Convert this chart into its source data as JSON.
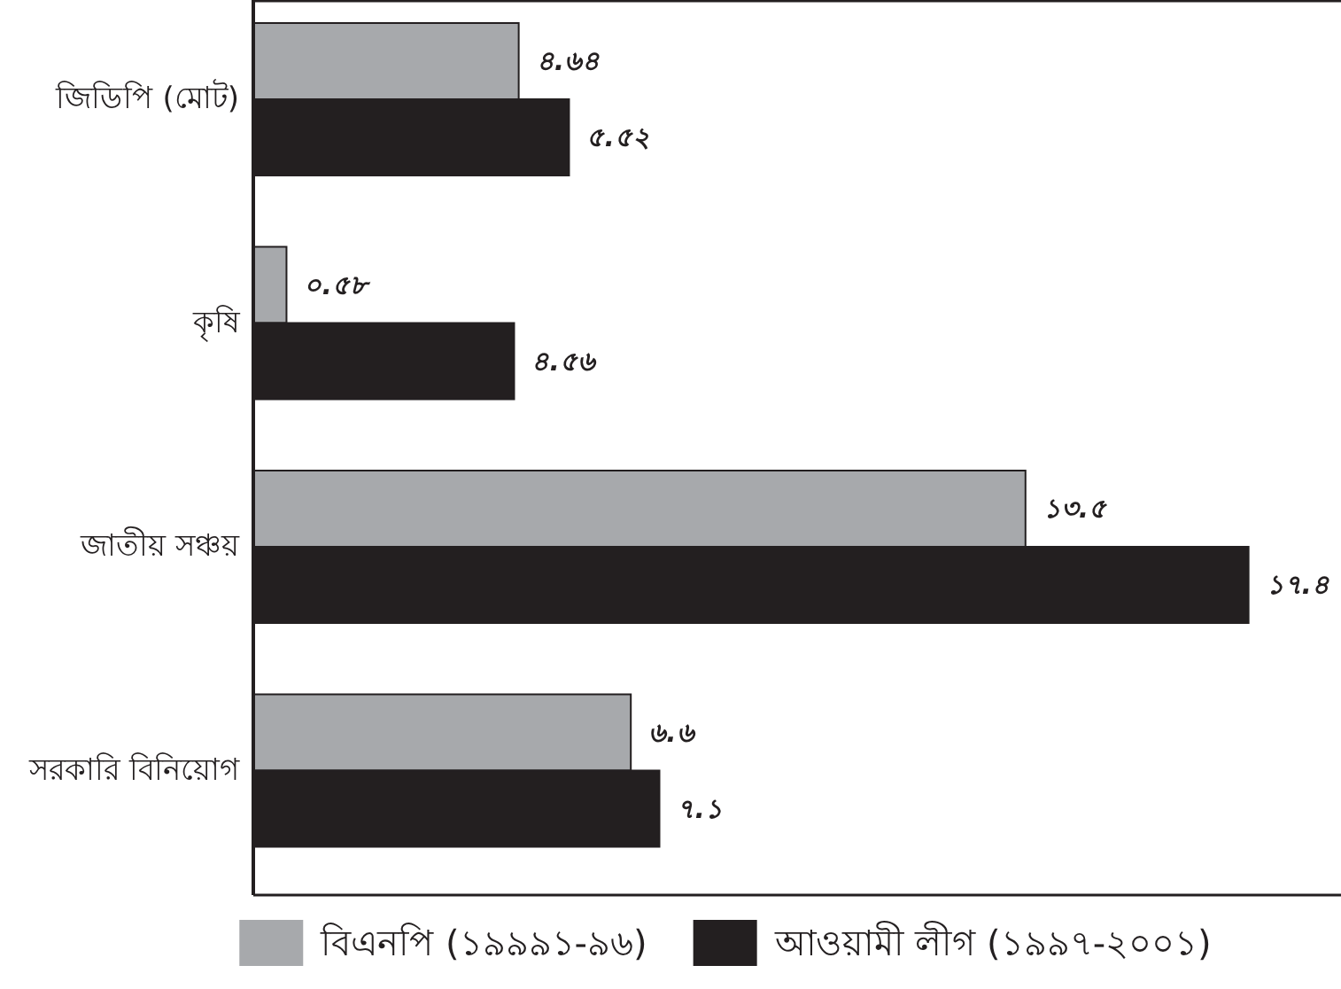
{
  "chart_data": {
    "type": "bar",
    "orientation": "horizontal",
    "categories": [
      "জিডিপি (মোট)",
      "কৃষি",
      "জাতীয় সঞ্চয়",
      "সরকারি বিনিয়োগ"
    ],
    "series": [
      {
        "name": "বিএনপি (১৯৯৯১-৯৬)",
        "color": "#a7a9ac",
        "values": [
          4.64,
          0.58,
          13.5,
          6.6
        ],
        "value_labels": [
          "৪.৬৪",
          "০.৫৮",
          "১৩.৫",
          "৬.৬"
        ]
      },
      {
        "name": "আওয়ামী লীগ (১৯৯৭-২০০১)",
        "color": "#231f20",
        "values": [
          5.52,
          4.56,
          17.4,
          7.1
        ],
        "value_labels": [
          "৫.৫২",
          "৪.৫৬",
          "১৭.৪",
          "৭.১"
        ]
      }
    ],
    "legend": "bottom",
    "tick_labels": "y"
  }
}
